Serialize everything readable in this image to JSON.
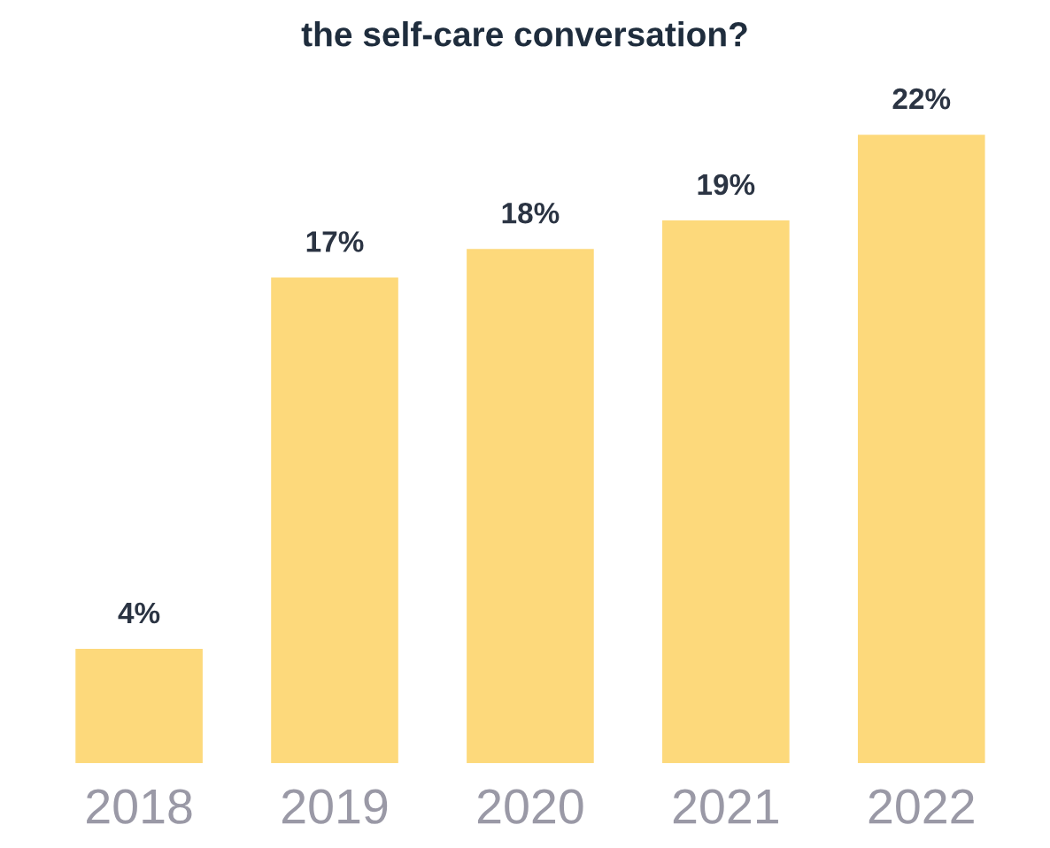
{
  "chart_data": {
    "type": "bar",
    "title": "the self-care conversation?",
    "categories": [
      "2018",
      "2019",
      "2020",
      "2021",
      "2022"
    ],
    "values": [
      4,
      17,
      18,
      19,
      22
    ],
    "value_labels": [
      "4%",
      "17%",
      "18%",
      "19%",
      "22%"
    ],
    "color": "#fdd97b"
  }
}
